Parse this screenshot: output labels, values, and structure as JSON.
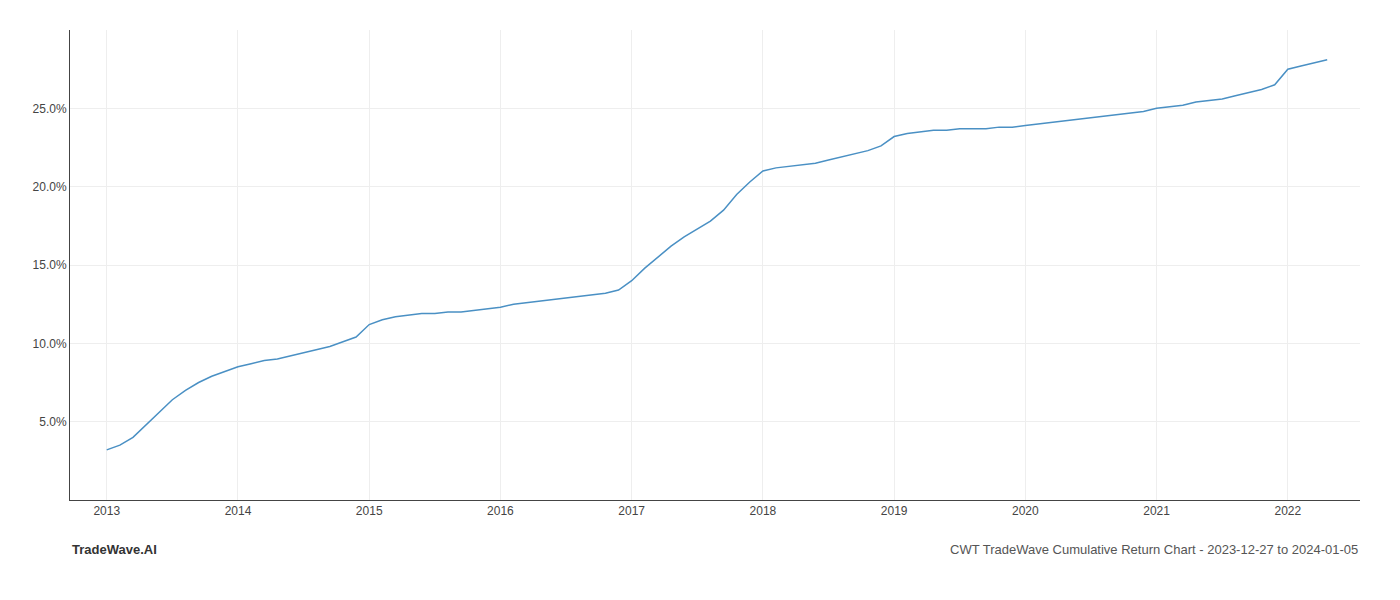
{
  "chart_data": {
    "type": "line",
    "color": "#4a90c4",
    "grid": true,
    "annotations": [
      "TradeWave.AI",
      "CWT TradeWave Cumulative Return Chart - 2023-12-27 to 2024-01-05"
    ],
    "x": [
      2013.0,
      2013.1,
      2013.2,
      2013.3,
      2013.4,
      2013.5,
      2013.6,
      2013.7,
      2013.8,
      2013.9,
      2014.0,
      2014.1,
      2014.2,
      2014.3,
      2014.4,
      2014.5,
      2014.6,
      2014.7,
      2014.8,
      2014.9,
      2015.0,
      2015.1,
      2015.2,
      2015.3,
      2015.4,
      2015.5,
      2015.6,
      2015.7,
      2015.8,
      2015.9,
      2016.0,
      2016.1,
      2016.2,
      2016.3,
      2016.4,
      2016.5,
      2016.6,
      2016.7,
      2016.8,
      2016.9,
      2017.0,
      2017.1,
      2017.2,
      2017.3,
      2017.4,
      2017.5,
      2017.6,
      2017.7,
      2017.8,
      2017.9,
      2018.0,
      2018.1,
      2018.2,
      2018.3,
      2018.4,
      2018.5,
      2018.6,
      2018.7,
      2018.8,
      2018.9,
      2019.0,
      2019.1,
      2019.2,
      2019.3,
      2019.4,
      2019.5,
      2019.6,
      2019.7,
      2019.8,
      2019.9,
      2020.0,
      2020.1,
      2020.2,
      2020.3,
      2020.4,
      2020.5,
      2020.6,
      2020.7,
      2020.8,
      2020.9,
      2021.0,
      2021.1,
      2021.2,
      2021.3,
      2021.4,
      2021.5,
      2021.6,
      2021.7,
      2021.8,
      2021.9,
      2022.0,
      2022.1,
      2022.2,
      2022.3
    ],
    "values": [
      3.2,
      3.5,
      4.0,
      4.8,
      5.6,
      6.4,
      7.0,
      7.5,
      7.9,
      8.2,
      8.5,
      8.7,
      8.9,
      9.0,
      9.2,
      9.4,
      9.6,
      9.8,
      10.1,
      10.4,
      11.2,
      11.5,
      11.7,
      11.8,
      11.9,
      11.9,
      12.0,
      12.0,
      12.1,
      12.2,
      12.3,
      12.5,
      12.6,
      12.7,
      12.8,
      12.9,
      13.0,
      13.1,
      13.2,
      13.4,
      14.0,
      14.8,
      15.5,
      16.2,
      16.8,
      17.3,
      17.8,
      18.5,
      19.5,
      20.3,
      21.0,
      21.2,
      21.3,
      21.4,
      21.5,
      21.7,
      21.9,
      22.1,
      22.3,
      22.6,
      23.2,
      23.4,
      23.5,
      23.6,
      23.6,
      23.7,
      23.7,
      23.7,
      23.8,
      23.8,
      23.9,
      24.0,
      24.1,
      24.2,
      24.3,
      24.4,
      24.5,
      24.6,
      24.7,
      24.8,
      25.0,
      25.1,
      25.2,
      25.4,
      25.5,
      25.6,
      25.8,
      26.0,
      26.2,
      26.5,
      27.5,
      27.7,
      27.9,
      28.1
    ],
    "xlim": [
      2012.72,
      2022.55
    ],
    "xticks": [
      2013,
      2014,
      2015,
      2016,
      2017,
      2018,
      2019,
      2020,
      2021,
      2022
    ],
    "ylim": [
      0,
      30
    ],
    "yticks": [
      {
        "value": 5.0,
        "label": "5.0%"
      },
      {
        "value": 10.0,
        "label": "10.0%"
      },
      {
        "value": 15.0,
        "label": "15.0%"
      },
      {
        "value": 20.0,
        "label": "20.0%"
      },
      {
        "value": 25.0,
        "label": "25.0%"
      }
    ]
  }
}
